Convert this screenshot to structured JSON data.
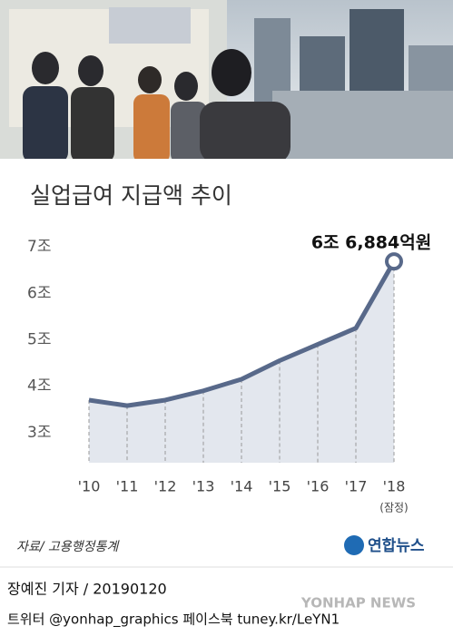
{
  "chart_data": {
    "type": "line",
    "title": "실업급여 지급액 추이",
    "categories": [
      "'10",
      "'11",
      "'12",
      "'13",
      "'14",
      "'15",
      "'16",
      "'17",
      "'18"
    ],
    "category_note": "(잠정)",
    "values": [
      3.7,
      3.58,
      3.7,
      3.9,
      4.15,
      4.55,
      4.9,
      5.25,
      6.6884
    ],
    "value_labels": [
      null,
      null,
      null,
      null,
      null,
      null,
      null,
      null,
      "6조 6,884억원"
    ],
    "color": "#58698a",
    "ylim": [
      2.35,
      7.2
    ],
    "yticks": [
      {
        "value": 3,
        "label": "3조"
      },
      {
        "value": 4,
        "label": "4조"
      },
      {
        "value": 5,
        "label": "5조"
      },
      {
        "value": 6,
        "label": "6조"
      },
      {
        "value": 7,
        "label": "7조"
      }
    ],
    "source": "자료/ 고용행정통계",
    "logo": "연합뉴스",
    "credit": "장예진 기자 / 20190120",
    "footer": "트위터 @yonhap_graphics  페이스북 tuney.kr/LeYN1",
    "watermark": "YONHAP NEWS"
  }
}
